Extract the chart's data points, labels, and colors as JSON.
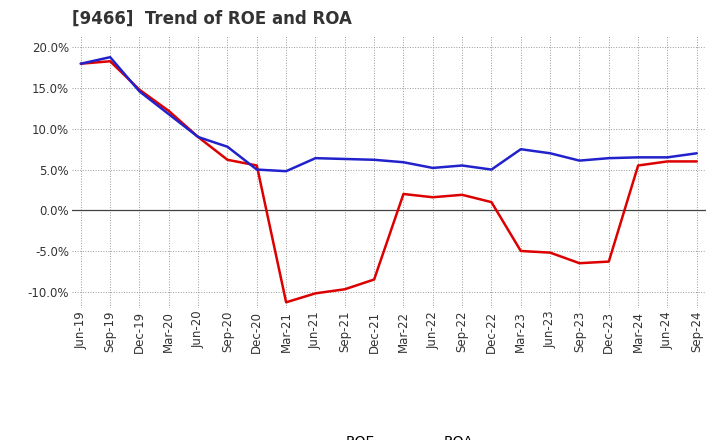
{
  "title": "[9466]  Trend of ROE and ROA",
  "x_labels": [
    "Jun-19",
    "Sep-19",
    "Dec-19",
    "Mar-20",
    "Jun-20",
    "Sep-20",
    "Dec-20",
    "Mar-21",
    "Jun-21",
    "Sep-21",
    "Dec-21",
    "Mar-22",
    "Jun-22",
    "Sep-22",
    "Dec-22",
    "Mar-23",
    "Jun-23",
    "Sep-23",
    "Dec-23",
    "Mar-24",
    "Jun-24",
    "Sep-24"
  ],
  "ROE": [
    18.0,
    18.3,
    14.8,
    12.2,
    9.0,
    6.2,
    5.5,
    -11.3,
    -10.2,
    -9.7,
    -8.5,
    2.0,
    1.6,
    1.9,
    1.0,
    -5.0,
    -5.2,
    -6.5,
    -6.3,
    5.5,
    6.0,
    6.0
  ],
  "ROA": [
    18.0,
    18.8,
    14.6,
    11.8,
    9.0,
    7.8,
    5.0,
    4.8,
    6.4,
    6.3,
    6.2,
    5.9,
    5.2,
    5.5,
    5.0,
    7.5,
    7.0,
    6.1,
    6.4,
    6.5,
    6.5,
    7.0
  ],
  "ROE_color": "#dd0000",
  "ROA_color": "#2222cc",
  "ylim": [
    -12.0,
    21.5
  ],
  "yticks": [
    -10.0,
    -5.0,
    0.0,
    5.0,
    10.0,
    15.0,
    20.0
  ],
  "background_color": "#ffffff",
  "plot_bg_color": "#ffffff",
  "grid_color": "#999999",
  "line_width": 1.8,
  "title_fontsize": 12,
  "tick_fontsize": 8.5,
  "legend_fontsize": 10
}
